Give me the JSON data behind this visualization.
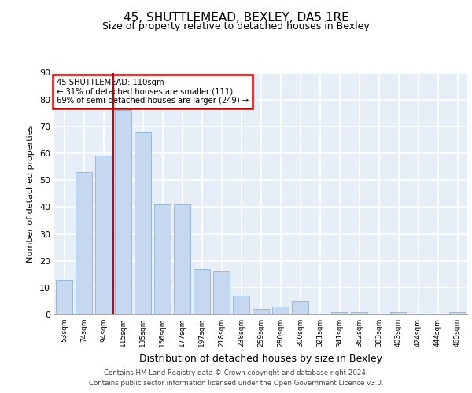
{
  "title1": "45, SHUTTLEMEAD, BEXLEY, DA5 1RE",
  "title2": "Size of property relative to detached houses in Bexley",
  "xlabel": "Distribution of detached houses by size in Bexley",
  "ylabel": "Number of detached properties",
  "categories": [
    "53sqm",
    "74sqm",
    "94sqm",
    "115sqm",
    "135sqm",
    "156sqm",
    "177sqm",
    "197sqm",
    "218sqm",
    "238sqm",
    "259sqm",
    "280sqm",
    "300sqm",
    "321sqm",
    "341sqm",
    "362sqm",
    "383sqm",
    "403sqm",
    "424sqm",
    "444sqm",
    "465sqm"
  ],
  "values": [
    13,
    53,
    59,
    76,
    68,
    41,
    41,
    17,
    16,
    7,
    2,
    3,
    5,
    0,
    1,
    1,
    0,
    1,
    0,
    0,
    1
  ],
  "bar_color": "#c5d8f0",
  "bar_edge_color": "#8ab4d8",
  "vline_color": "#cc0000",
  "annotation_text": "45 SHUTTLEMEAD: 110sqm\n← 31% of detached houses are smaller (111)\n69% of semi-detached houses are larger (249) →",
  "annotation_box_color": "#cc0000",
  "ylim": [
    0,
    90
  ],
  "yticks": [
    0,
    10,
    20,
    30,
    40,
    50,
    60,
    70,
    80,
    90
  ],
  "footer": "Contains HM Land Registry data © Crown copyright and database right 2024.\nContains public sector information licensed under the Open Government Licence v3.0.",
  "background_color": "#e8eef8",
  "grid_color": "#ffffff",
  "title_fontsize": 11,
  "subtitle_fontsize": 9
}
